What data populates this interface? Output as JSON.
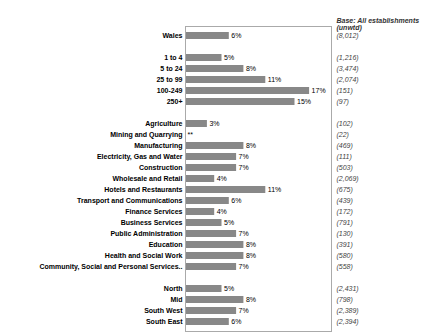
{
  "chart_data": {
    "type": "bar",
    "orientation": "horizontal",
    "categories": [
      "Wales",
      null,
      "1 to 4",
      "5 to 24",
      "25 to 99",
      "100-249",
      "250+",
      null,
      "Agriculture",
      "Mining and Quarrying",
      "Manufacturing",
      "Electricity, Gas and Water",
      "Construction",
      "Wholesale and Retail",
      "Hotels and Restaurants",
      "Transport and Communications",
      "Finance Services",
      "Business Services",
      "Public Administration",
      "Education",
      "Health and Social Work",
      "Community, Social and Personal Services..",
      null,
      "North",
      "Mid",
      "South West",
      "South East"
    ],
    "values": [
      6,
      null,
      5,
      8,
      11,
      17,
      15,
      null,
      3,
      0,
      8,
      7,
      7,
      4,
      11,
      6,
      4,
      5,
      7,
      8,
      8,
      7,
      null,
      5,
      8,
      7,
      6
    ],
    "value_labels": [
      "6%",
      null,
      "5%",
      "8%",
      "11%",
      "17%",
      "15%",
      null,
      "3%",
      "**",
      "8%",
      "7%",
      "7%",
      "4%",
      "11%",
      "6%",
      "4%",
      "5%",
      "7%",
      "8%",
      "8%",
      "7%",
      null,
      "5%",
      "8%",
      "7%",
      "6%"
    ],
    "data_labels": true,
    "color": "#888888",
    "xlim": [
      0,
      20
    ],
    "tick_labels": "y",
    "grid": false,
    "base_labels": [
      "(8,012)",
      null,
      "(1,216)",
      "(3,474)",
      "(2,074)",
      "(151)",
      "(97)",
      null,
      "(102)",
      "(22)",
      "(469)",
      "(111)",
      "(503)",
      "(2,069)",
      "(675)",
      "(439)",
      "(172)",
      "(791)",
      "(130)",
      "(391)",
      "(580)",
      "(558)",
      null,
      "(2,431)",
      "(798)",
      "(2,389)",
      "(2,394)"
    ],
    "base_header": [
      "Base: All establishments",
      "(unwtd)"
    ]
  }
}
